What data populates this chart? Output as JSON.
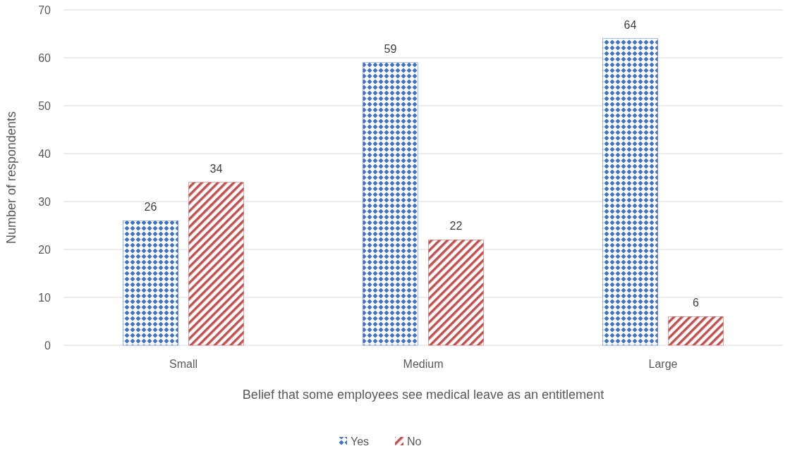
{
  "chart_data": {
    "type": "bar",
    "xlabel": "Belief that some employees see medical leave as an entitlement",
    "ylabel": "Number of respondents",
    "categories": [
      "Small",
      "Medium",
      "Large"
    ],
    "series": [
      {
        "name": "Yes",
        "color": "#4472c4",
        "values": [
          26,
          59,
          64
        ]
      },
      {
        "name": "No",
        "color": "#c0504d",
        "values": [
          34,
          22,
          6
        ]
      }
    ],
    "ylim": [
      0,
      70
    ],
    "yticks": [
      0,
      10,
      20,
      30,
      40,
      50,
      60,
      70
    ],
    "grid": "y",
    "legend": "bottom",
    "data_labels": true
  }
}
